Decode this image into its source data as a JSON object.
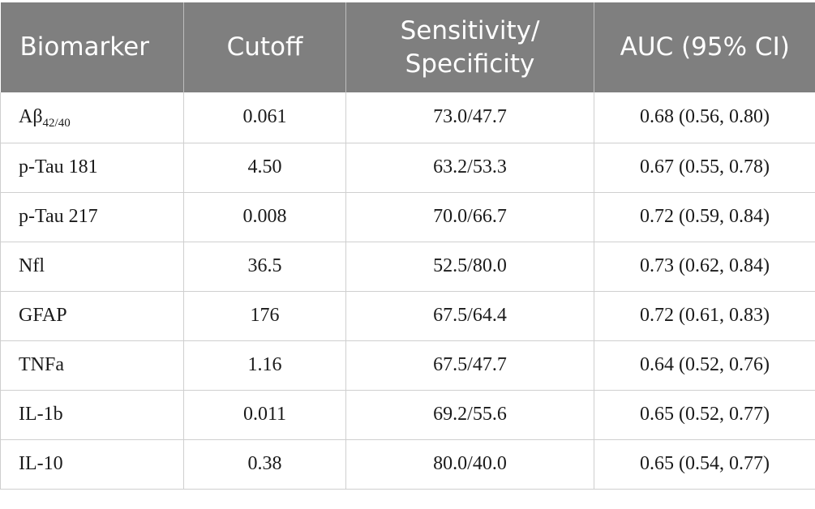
{
  "table": {
    "headers": {
      "biomarker": "Biomarker",
      "cutoff": "Cutoff",
      "sens_spec_line1": "Sensitivity/",
      "sens_spec_line2": "Specificity",
      "auc": "AUC (95% CI)"
    },
    "rows": [
      {
        "biomarker": "Aβ",
        "biomarker_sub": "42/40",
        "cutoff": "0.061",
        "sens_spec": "73.0/47.7",
        "auc": "0.68 (0.56, 0.80)"
      },
      {
        "biomarker": "p-Tau 181",
        "biomarker_sub": "",
        "cutoff": "4.50",
        "sens_spec": "63.2/53.3",
        "auc": "0.67 (0.55, 0.78)"
      },
      {
        "biomarker": "p-Tau 217",
        "biomarker_sub": "",
        "cutoff": "0.008",
        "sens_spec": "70.0/66.7",
        "auc": "0.72 (0.59, 0.84)"
      },
      {
        "biomarker": "Nfl",
        "biomarker_sub": "",
        "cutoff": "36.5",
        "sens_spec": "52.5/80.0",
        "auc": "0.73 (0.62, 0.84)"
      },
      {
        "biomarker": "GFAP",
        "biomarker_sub": "",
        "cutoff": "176",
        "sens_spec": "67.5/64.4",
        "auc": "0.72 (0.61, 0.83)"
      },
      {
        "biomarker": "TNFa",
        "biomarker_sub": "",
        "cutoff": "1.16",
        "sens_spec": "67.5/47.7",
        "auc": "0.64 (0.52, 0.76)"
      },
      {
        "biomarker": "IL-1b",
        "biomarker_sub": "",
        "cutoff": "0.011",
        "sens_spec": "69.2/55.6",
        "auc": "0.65 (0.52, 0.77)"
      },
      {
        "biomarker": "IL-10",
        "biomarker_sub": "",
        "cutoff": "0.38",
        "sens_spec": "80.0/40.0",
        "auc": "0.65 (0.54, 0.77)"
      }
    ]
  },
  "colors": {
    "header_bg": "#7f7f7f",
    "header_text": "#ffffff",
    "grid_line": "#cfcfcf",
    "body_text": "#1a1a1a"
  }
}
